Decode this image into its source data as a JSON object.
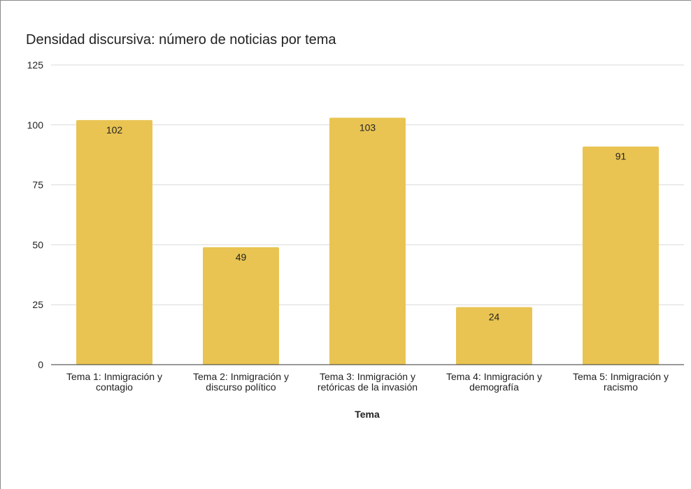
{
  "chart_data": {
    "type": "bar",
    "title": "Densidad discursiva: número de noticias por tema",
    "xlabel": "Tema",
    "ylabel": "",
    "ylim": [
      0,
      125
    ],
    "yticks": [
      0,
      25,
      50,
      75,
      100,
      125
    ],
    "grid": true,
    "categories": [
      [
        "Tema 1: Inmigración y",
        "contagio"
      ],
      [
        "Tema 2: Inmigración y",
        "discurso político"
      ],
      [
        "Tema 3: Inmigración y",
        "retóricas de la invasión"
      ],
      [
        "Tema 4: Inmigración y",
        "demografía"
      ],
      [
        "Tema 5: Inmigración y",
        "racismo"
      ]
    ],
    "values": [
      102,
      49,
      103,
      24,
      91
    ],
    "data_labels": [
      "102",
      "49",
      "103",
      "24",
      "91"
    ],
    "bar_color": "#E9C452",
    "grid_color": "#d9d9d9",
    "axis_color": "#333333"
  }
}
